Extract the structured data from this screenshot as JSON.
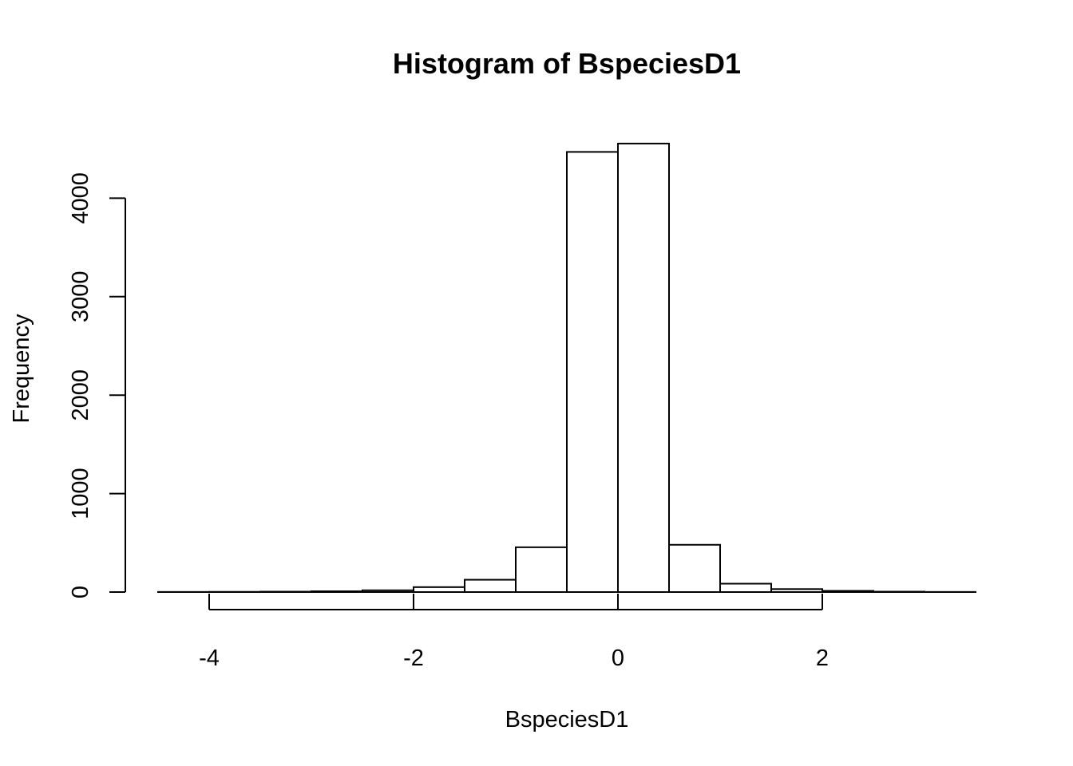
{
  "chart_data": {
    "type": "bar",
    "title": "Histogram of BspeciesD1",
    "xlabel": "BspeciesD1",
    "ylabel": "Frequency",
    "bin_edges": [
      -4.5,
      -4.0,
      -3.5,
      -3.0,
      -2.5,
      -2.0,
      -1.5,
      -1.0,
      -0.5,
      0.0,
      0.5,
      1.0,
      1.5,
      2.0,
      2.5,
      3.0,
      3.5
    ],
    "values": [
      1,
      2,
      4,
      8,
      18,
      50,
      125,
      455,
      4470,
      4555,
      480,
      85,
      30,
      12,
      4,
      1
    ],
    "xlim": [
      -4.5,
      3.5
    ],
    "ylim": [
      0,
      4555
    ],
    "x_ticks": [
      -4,
      -2,
      0,
      2
    ],
    "x_tick_labels": [
      "-4",
      "-2",
      "0",
      "2"
    ],
    "y_ticks": [
      0,
      1000,
      2000,
      3000,
      4000
    ],
    "y_tick_labels": [
      "0",
      "1000",
      "2000",
      "3000",
      "4000"
    ],
    "grid": false,
    "bar_fill": "#ffffff",
    "bar_stroke": "#000000"
  }
}
